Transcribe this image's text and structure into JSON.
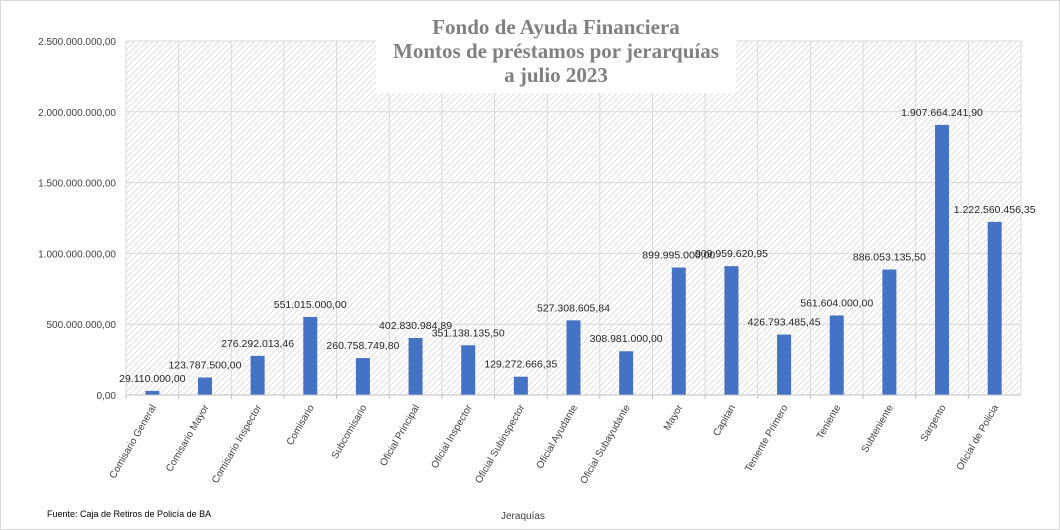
{
  "chart_data": {
    "type": "bar",
    "title": [
      "Fondo de Ayuda Financiera",
      "Montos de préstamos por jerarquías",
      "a julio 2023"
    ],
    "xlabel": "Jeraquías",
    "ylabel": "",
    "source": "Fuente: Caja de Retiros de Policía de BA",
    "ylim": [
      0,
      2500000000
    ],
    "y_ticks": [
      {
        "value": 0,
        "label": "0,00"
      },
      {
        "value": 500000000,
        "label": "500.000.000,00"
      },
      {
        "value": 1000000000,
        "label": "1.000.000.000,00"
      },
      {
        "value": 1500000000,
        "label": "1.500.000.000,00"
      },
      {
        "value": 2000000000,
        "label": "2.000.000.000,00"
      },
      {
        "value": 2500000000,
        "label": "2.500.000.000,00"
      }
    ],
    "grid": true,
    "legend": "none",
    "bar_color": "#4472c4",
    "categories": [
      "Comisario General",
      "Comisario Mayor",
      "Comisario Inspector",
      "Comisario",
      "Subcomisario",
      "Oficial Principal",
      "Oficial Inspector",
      "Oficial Subinspector",
      "Oficial Ayudante",
      "Oficial Subayudante",
      "Mayor",
      "Capitan",
      "Teniente Primero",
      "Teniente",
      "Subteniente",
      "Sargento",
      "Oficial de Policia"
    ],
    "values": [
      29110000.0,
      123787500.0,
      276292013.46,
      551015000.0,
      260758749.8,
      402830984.89,
      351138135.5,
      129272666.35,
      527308605.84,
      308981000.0,
      899995000.0,
      909959620.95,
      426793485.45,
      561604000.0,
      886053135.5,
      1907664241.9,
      1222560456.35
    ],
    "data_labels": [
      "29.110.000,00",
      "123.787.500,00",
      "276.292.013,46",
      "551.015.000,00",
      "260.758.749,80",
      "402.830.984,89",
      "351.138.135,50",
      "129.272.666,35",
      "527.308.605,84",
      "308.981.000,00",
      "899.995.000,00",
      "909.959.620,95",
      "426.793.485,45",
      "561.604.000,00",
      "886.053.135,50",
      "1.907.664.241,90",
      "1.222.560.456,35"
    ]
  }
}
